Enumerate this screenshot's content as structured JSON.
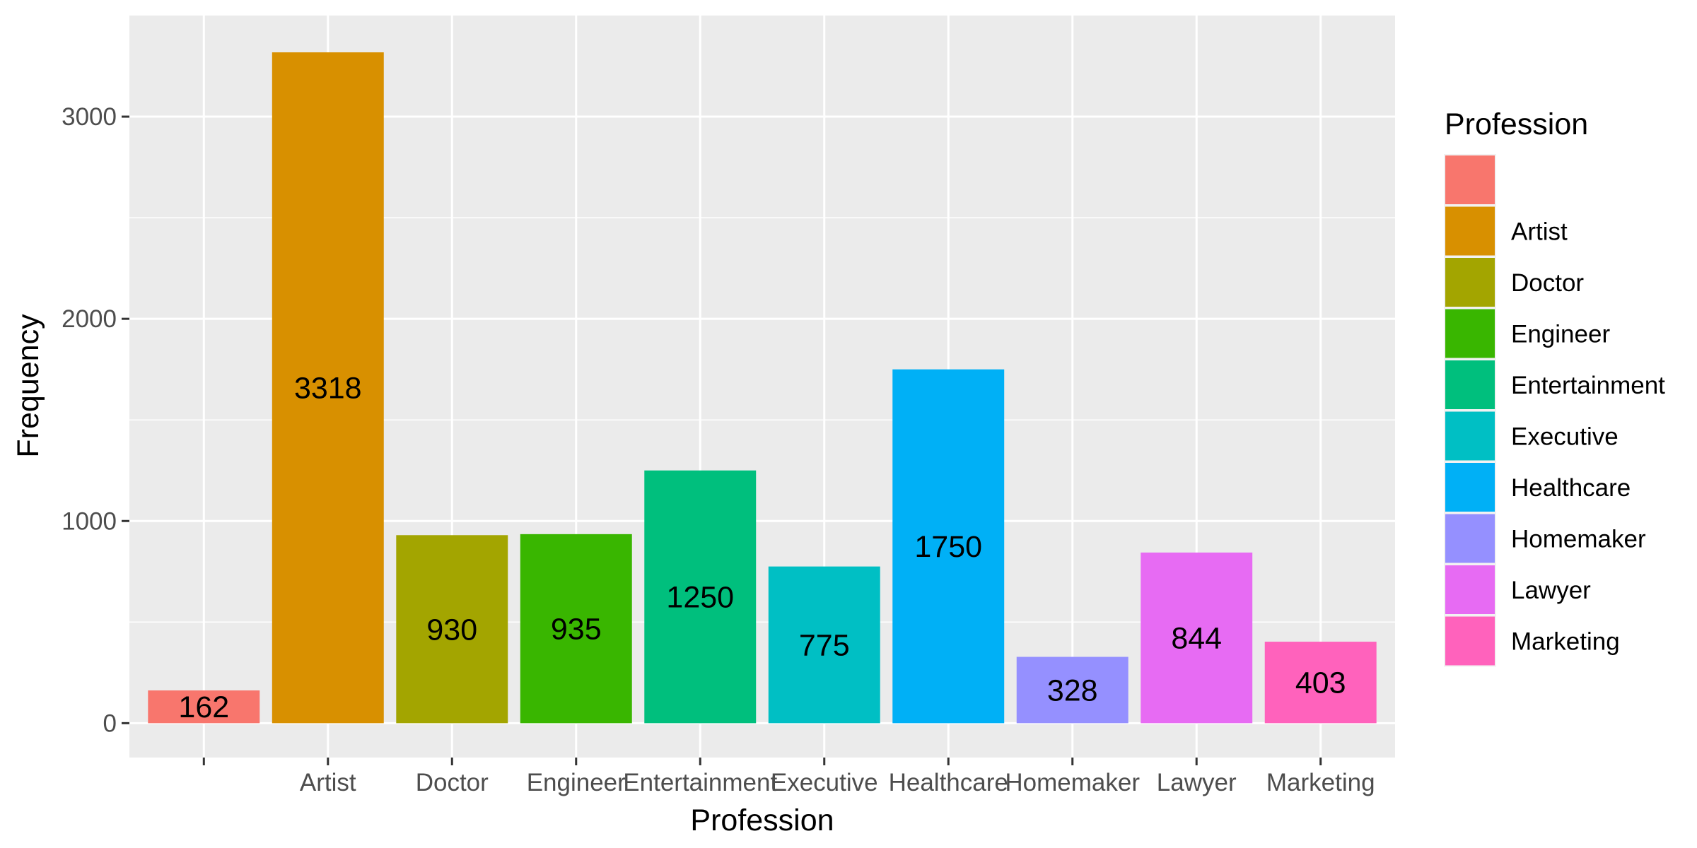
{
  "chart_data": {
    "type": "bar",
    "categories": [
      "",
      "Artist",
      "Doctor",
      "Engineer",
      "Entertainment",
      "Executive",
      "Healthcare",
      "Homemaker",
      "Lawyer",
      "Marketing"
    ],
    "values": [
      162,
      3318,
      930,
      935,
      1250,
      775,
      1750,
      328,
      844,
      403
    ],
    "data_labels": [
      "162",
      "3318",
      "930",
      "935",
      "1250",
      "775",
      "1750",
      "328",
      "844",
      "403"
    ],
    "colors": [
      "#F8766D",
      "#D89000",
      "#A3A500",
      "#39B600",
      "#00BF7D",
      "#00BFC4",
      "#00B0F6",
      "#9590FF",
      "#E76BF3",
      "#FF62BC"
    ],
    "xlabel": "Profession",
    "ylabel": "Frequency",
    "ylim": [
      -170,
      3500
    ],
    "yticks": [
      0,
      1000,
      2000,
      3000
    ],
    "ytick_labels": [
      "0",
      "1000",
      "2000",
      "3000"
    ],
    "grid": true,
    "panel_background": "#EBEBEB",
    "grid_color": "#FFFFFF",
    "legend": {
      "title": "Profession",
      "placement": "right",
      "labels": [
        "",
        "Artist",
        "Doctor",
        "Engineer",
        "Entertainment",
        "Executive",
        "Healthcare",
        "Homemaker",
        "Lawyer",
        "Marketing"
      ]
    }
  }
}
